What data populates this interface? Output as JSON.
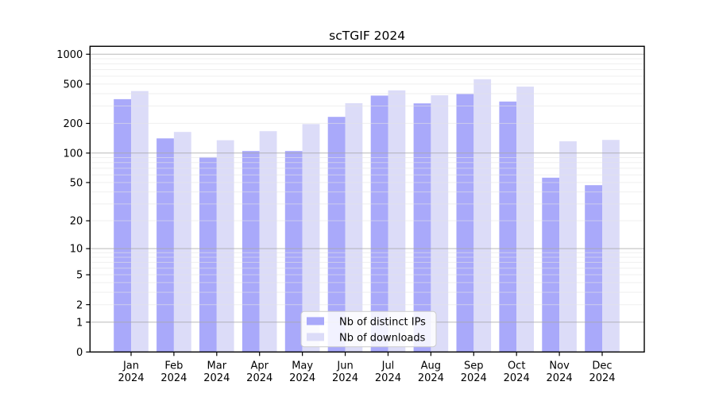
{
  "chart_data": {
    "type": "bar",
    "title": "scTGIF 2024",
    "scale": "log1p",
    "xlabel": "",
    "ylabel": "",
    "grid": true,
    "legend_position": "lower center",
    "y_ticks": [
      1000,
      500,
      200,
      100,
      50,
      20,
      10,
      5,
      2,
      1,
      0
    ],
    "ylim": [
      0,
      1200
    ],
    "x_axis": {
      "months": [
        "Jan",
        "Feb",
        "Mar",
        "Apr",
        "May",
        "Jun",
        "Jul",
        "Aug",
        "Sep",
        "Oct",
        "Nov",
        "Dec"
      ],
      "year": "2024"
    },
    "categories": [
      "Jan 2024",
      "Feb 2024",
      "Mar 2024",
      "Apr 2024",
      "May 2024",
      "Jun 2024",
      "Jul 2024",
      "Aug 2024",
      "Sep 2024",
      "Oct 2024",
      "Nov 2024",
      "Dec 2024"
    ],
    "series": [
      {
        "name": "Nb of distinct IPs",
        "color": "#a9a9fa",
        "values": [
          352,
          141,
          91,
          105,
          105,
          233,
          382,
          319,
          397,
          333,
          56,
          47
        ]
      },
      {
        "name": "Nb of downloads",
        "color": "#dcdcf8",
        "values": [
          425,
          164,
          135,
          167,
          197,
          320,
          432,
          385,
          559,
          471,
          132,
          136
        ]
      }
    ]
  },
  "colors": {
    "plot_border": "#000000",
    "major_gridline": "#a8a8a8",
    "minor_gridline": "#e4e4e4",
    "legend_border": "#cccccc",
    "legend_background": "#ffffff",
    "background": "#ffffff"
  }
}
